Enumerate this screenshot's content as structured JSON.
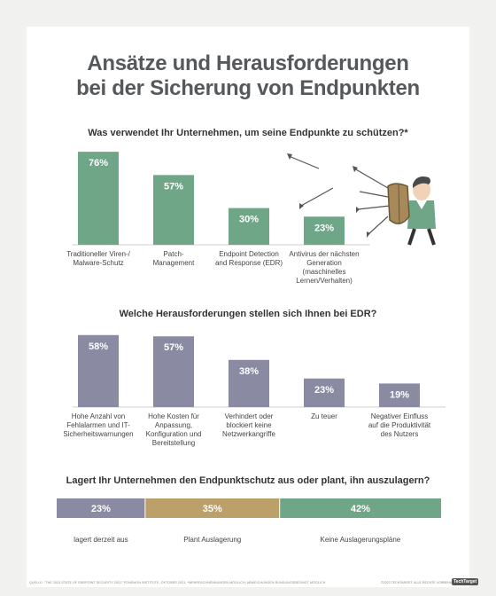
{
  "title_lines": [
    "Ansätze und Herausforderungen",
    "bei der Sicherung von Endpunkten"
  ],
  "footer": {
    "source": "QUELLE: \"THE 2023 STATE OF ENDPOINT SECURITY 2021\" PONEMON INSTITUTE, OKTOBER 2021; *MEHRFACHNENNUNGEN MÖGLICH; ABWEICHUNGEN RUNDUNGSBEDINGT MÖGLICH",
    "copyright": "©2023 TECHTARGET. ALLE RECHTE VORBEHALTEN.",
    "logo": "TechTarget"
  },
  "colors": {
    "green": "#6fa688",
    "purple": "#8a8aa3",
    "gold": "#bca06a",
    "title": "#56595c"
  },
  "chart_data": [
    {
      "type": "bar",
      "title": "Was verwendet Ihr Unternehmen, um seine Endpunkte zu schützen?*",
      "categories": [
        "Traditioneller Viren-/ Malware-Schutz",
        "Patch-Management",
        "Endpoint Detection and Response (EDR)",
        "Antivirus der nächsten Generation (maschinelles Lernen/Verhalten)"
      ],
      "category_lines": [
        [
          "Traditioneller Viren-/",
          "Malware-Schutz"
        ],
        [
          "Patch-",
          "Management"
        ],
        [
          "Endpoint Detection",
          "and Response (EDR)"
        ],
        [
          "Antivirus der nächsten",
          "Generation (maschinelles",
          "Lernen/Verhalten)"
        ]
      ],
      "values": [
        76,
        57,
        30,
        23
      ],
      "value_labels": [
        "76%",
        "57%",
        "30%",
        "23%"
      ],
      "color": "#6fa688",
      "ylim": [
        0,
        100
      ]
    },
    {
      "type": "bar",
      "title": "Welche Herausforderungen stellen sich Ihnen bei EDR?",
      "categories": [
        "Hohe Anzahl von Fehlalarmen und IT-Sicherheitswarnungen",
        "Hohe Kosten für Anpassung, Konfiguration und Bereitstellung",
        "Verhindert oder blockiert keine Netzwerkangriffe",
        "Zu teuer",
        "Negativer Einfluss auf die Produktivität des Nutzers"
      ],
      "category_lines": [
        [
          "Hohe Anzahl von",
          "Fehlalarmen und IT-",
          "Sicherheitswarnungen"
        ],
        [
          "Hohe Kosten für",
          "Anpassung,",
          "Konfiguration und",
          "Bereitstellung"
        ],
        [
          "Verhindert oder",
          "blockiert keine",
          "Netzwerkangriffe"
        ],
        [
          "Zu teuer"
        ],
        [
          "Negativer Einfluss",
          "auf die Produktivität",
          "des Nutzers"
        ]
      ],
      "values": [
        58,
        57,
        38,
        23,
        19
      ],
      "value_labels": [
        "58%",
        "57%",
        "38%",
        "23%",
        "19%"
      ],
      "color": "#8a8aa3",
      "ylim": [
        0,
        100
      ]
    },
    {
      "type": "bar",
      "orientation": "stacked-horizontal",
      "title": "Lagert Ihr Unternehmen den Endpunktschutz aus oder plant, ihn auszulagern?",
      "categories": [
        "lagert derzeit aus",
        "Plant Auslagerung",
        "Keine Auslagerungspläne"
      ],
      "values": [
        23,
        35,
        42
      ],
      "value_labels": [
        "23%",
        "35%",
        "42%"
      ],
      "colors": [
        "#8a8aa3",
        "#bca06a",
        "#6fa688"
      ]
    }
  ]
}
